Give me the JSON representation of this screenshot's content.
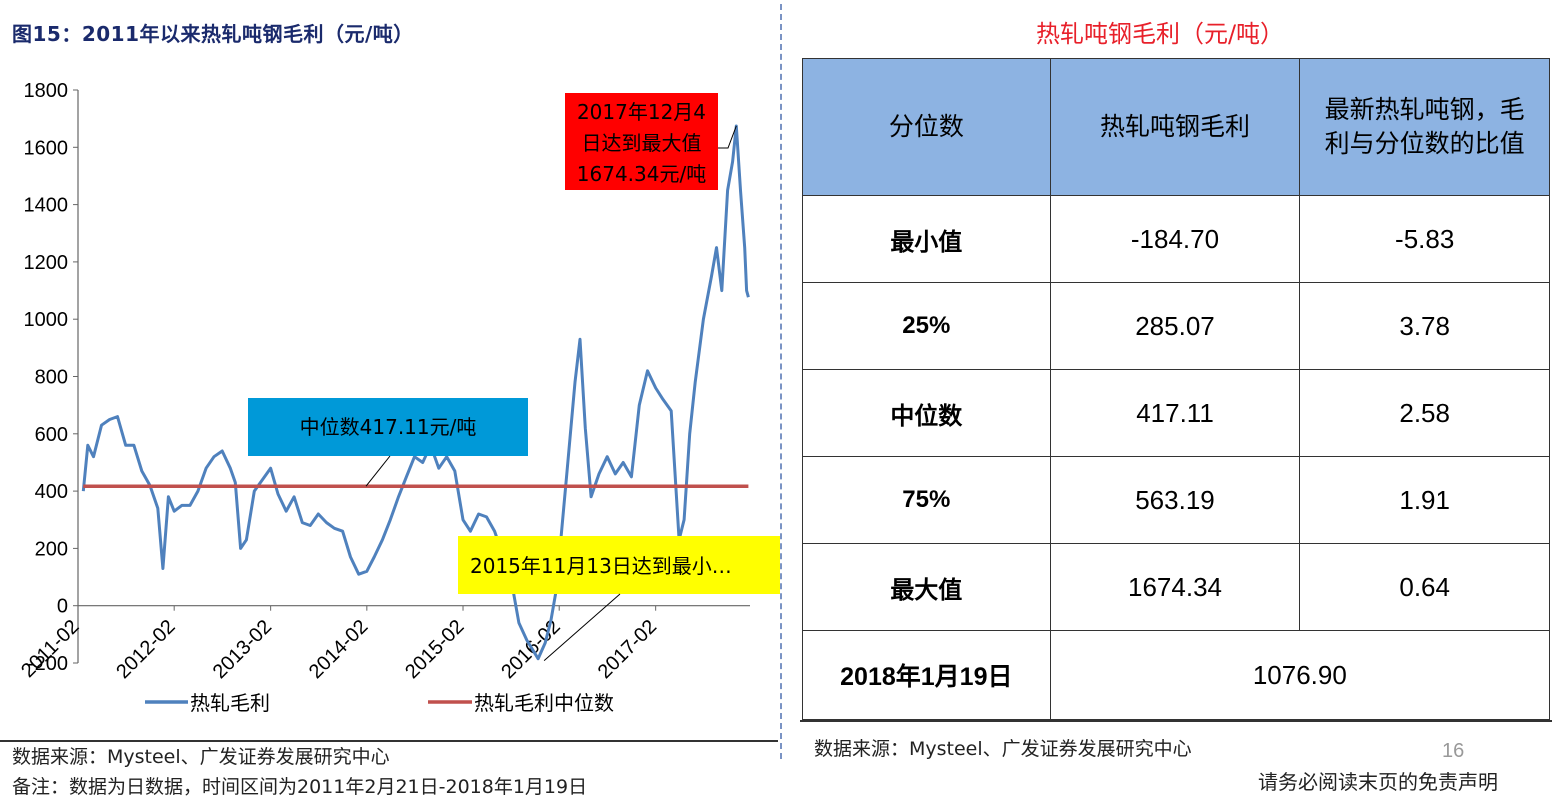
{
  "figure": {
    "title": "图15：2011年以来热轧吨钢毛利（元/吨）",
    "source": "数据来源：Mysteel、广发证券发展研究中心",
    "note": "备注：数据为日数据，时间区间为2011年2月21日-2018年1月19日"
  },
  "chart_data": {
    "type": "line",
    "ylim": [
      -200,
      1800
    ],
    "yticks": [
      "1800",
      "1600",
      "1400",
      "1200",
      "1000",
      "800",
      "600",
      "400",
      "200",
      "0",
      "-200"
    ],
    "xticks": [
      "2011-02",
      "2012-02",
      "2013-02",
      "2014-02",
      "2015-02",
      "2016-02",
      "2017-02"
    ],
    "grid": false,
    "legend_position": "bottom",
    "series": [
      {
        "name": "热轧毛利",
        "color": "#4f81bd",
        "points": [
          [
            "2011-02-21",
            400
          ],
          [
            "2011-03-10",
            560
          ],
          [
            "2011-04-01",
            520
          ],
          [
            "2011-05-01",
            630
          ],
          [
            "2011-06-01",
            650
          ],
          [
            "2011-07-01",
            660
          ],
          [
            "2011-08-01",
            560
          ],
          [
            "2011-09-01",
            560
          ],
          [
            "2011-10-01",
            470
          ],
          [
            "2011-11-01",
            420
          ],
          [
            "2011-12-01",
            340
          ],
          [
            "2011-12-20",
            130
          ],
          [
            "2012-01-10",
            380
          ],
          [
            "2012-02-01",
            330
          ],
          [
            "2012-03-01",
            350
          ],
          [
            "2012-04-01",
            350
          ],
          [
            "2012-05-01",
            400
          ],
          [
            "2012-06-01",
            480
          ],
          [
            "2012-07-01",
            520
          ],
          [
            "2012-08-01",
            540
          ],
          [
            "2012-09-01",
            480
          ],
          [
            "2012-09-20",
            430
          ],
          [
            "2012-10-10",
            200
          ],
          [
            "2012-11-01",
            230
          ],
          [
            "2012-12-01",
            400
          ],
          [
            "2013-01-01",
            440
          ],
          [
            "2013-02-01",
            480
          ],
          [
            "2013-03-01",
            390
          ],
          [
            "2013-04-01",
            330
          ],
          [
            "2013-05-01",
            380
          ],
          [
            "2013-06-01",
            290
          ],
          [
            "2013-07-01",
            280
          ],
          [
            "2013-08-01",
            320
          ],
          [
            "2013-09-01",
            290
          ],
          [
            "2013-10-01",
            270
          ],
          [
            "2013-11-01",
            260
          ],
          [
            "2013-12-01",
            170
          ],
          [
            "2014-01-01",
            110
          ],
          [
            "2014-02-01",
            120
          ],
          [
            "2014-03-01",
            170
          ],
          [
            "2014-04-01",
            230
          ],
          [
            "2014-05-01",
            300
          ],
          [
            "2014-06-01",
            380
          ],
          [
            "2014-07-01",
            450
          ],
          [
            "2014-08-01",
            520
          ],
          [
            "2014-09-01",
            500
          ],
          [
            "2014-10-01",
            560
          ],
          [
            "2014-11-01",
            480
          ],
          [
            "2014-12-01",
            520
          ],
          [
            "2015-01-01",
            470
          ],
          [
            "2015-02-01",
            300
          ],
          [
            "2015-03-01",
            260
          ],
          [
            "2015-04-01",
            320
          ],
          [
            "2015-05-01",
            310
          ],
          [
            "2015-06-01",
            260
          ],
          [
            "2015-07-01",
            180
          ],
          [
            "2015-08-01",
            100
          ],
          [
            "2015-09-01",
            -60
          ],
          [
            "2015-10-01",
            -120
          ],
          [
            "2015-11-13",
            -185
          ],
          [
            "2015-12-10",
            -130
          ],
          [
            "2016-01-01",
            -50
          ],
          [
            "2016-01-20",
            50
          ],
          [
            "2016-02-05",
            210
          ],
          [
            "2016-03-01",
            460
          ],
          [
            "2016-04-01",
            780
          ],
          [
            "2016-04-20",
            930
          ],
          [
            "2016-05-10",
            620
          ],
          [
            "2016-06-01",
            380
          ],
          [
            "2016-07-01",
            460
          ],
          [
            "2016-08-01",
            520
          ],
          [
            "2016-09-01",
            460
          ],
          [
            "2016-10-01",
            500
          ],
          [
            "2016-11-01",
            450
          ],
          [
            "2016-12-01",
            700
          ],
          [
            "2017-01-01",
            820
          ],
          [
            "2017-02-01",
            760
          ],
          [
            "2017-03-01",
            720
          ],
          [
            "2017-04-01",
            680
          ],
          [
            "2017-05-01",
            230
          ],
          [
            "2017-05-20",
            300
          ],
          [
            "2017-06-10",
            600
          ],
          [
            "2017-07-01",
            780
          ],
          [
            "2017-08-01",
            1000
          ],
          [
            "2017-09-01",
            1150
          ],
          [
            "2017-09-20",
            1250
          ],
          [
            "2017-10-10",
            1100
          ],
          [
            "2017-11-01",
            1450
          ],
          [
            "2017-11-20",
            1550
          ],
          [
            "2017-12-04",
            1674.34
          ],
          [
            "2017-12-20",
            1450
          ],
          [
            "2018-01-05",
            1250
          ],
          [
            "2018-01-12",
            1100
          ],
          [
            "2018-01-19",
            1076.9
          ]
        ]
      },
      {
        "name": "热轧毛利中位数",
        "color": "#c0504d",
        "points": [
          [
            "2011-02-21",
            417.11
          ],
          [
            "2018-01-19",
            417.11
          ]
        ]
      }
    ],
    "annotations": [
      {
        "text": "2017年12月4日达到最大值1674.34元/吨",
        "lines": [
          "2017年12月4",
          "日达到最大值",
          "1674.34元/吨"
        ],
        "bg": "#ff0000",
        "at": [
          "2017-12-04",
          1674.34
        ]
      },
      {
        "text": "中位数417.11元/吨",
        "bg": "#0099d8",
        "at": [
          "2014-01-01",
          417.11
        ]
      },
      {
        "text": "2015年11月13日达到最小…",
        "bg": "#ffff00",
        "at": [
          "2015-11-13",
          -184.7
        ]
      }
    ]
  },
  "table": {
    "title": "热轧吨钢毛利（元/吨）",
    "headers": [
      "分位数",
      "热轧吨钢毛利",
      "最新热轧吨钢，毛利与分位数的比值"
    ],
    "header3_lines": [
      "最新热轧吨钢，毛",
      "利与分位数的比值"
    ],
    "rows": [
      {
        "label": "最小值",
        "value": "-184.70",
        "ratio": "-5.83"
      },
      {
        "label": "25%",
        "value": "285.07",
        "ratio": "3.78"
      },
      {
        "label": "中位数",
        "value": "417.11",
        "ratio": "2.58"
      },
      {
        "label": "75%",
        "value": "563.19",
        "ratio": "1.91"
      },
      {
        "label": "最大值",
        "value": "1674.34",
        "ratio": "0.64"
      }
    ],
    "latest": {
      "date": "2018年1月19日",
      "value": "1076.90"
    },
    "header_bg": "#8db3e2",
    "title_color": "#e8202a",
    "source": "数据来源：Mysteel、广发证券发展研究中心"
  },
  "page": {
    "number": "16",
    "disclaimer": "请务必阅读末页的免责声明"
  }
}
